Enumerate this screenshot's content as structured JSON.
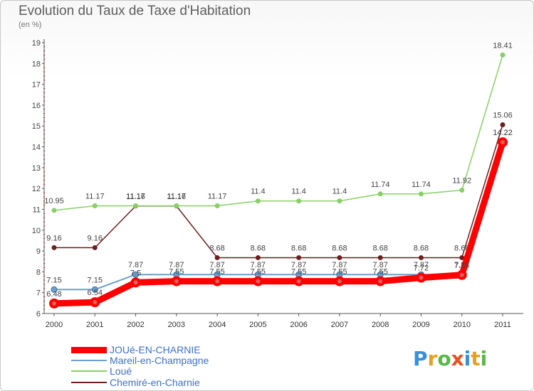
{
  "header": {
    "title": "Evolution du Taux de Taxe d'Habitation",
    "subtitle": "(en %)"
  },
  "logo": {
    "letters": [
      "P",
      "r",
      "o",
      "x",
      "i",
      "t",
      "i"
    ],
    "colors": [
      "#3a8fd8",
      "#e8a020",
      "#58b848",
      "#e85020",
      "#3a8fd8",
      "#e8a020",
      "#58b848"
    ]
  },
  "chart_data": {
    "type": "line",
    "title": "Evolution du Taux de Taxe d'Habitation",
    "ylabel": "(en %)",
    "xlabel": "",
    "ylim": [
      6,
      19
    ],
    "yticks": [
      "6",
      "7",
      "8",
      "9",
      "10",
      "11",
      "12",
      "13",
      "14",
      "15",
      "16",
      "17",
      "18",
      "19"
    ],
    "categories": [
      "2000",
      "2001",
      "2002",
      "2003",
      "2004",
      "2005",
      "2006",
      "2007",
      "2008",
      "2009",
      "2010",
      "2011"
    ],
    "grid": false,
    "legend_position": "bottom-left",
    "series": [
      {
        "name": "JOUé-EN-CHARNIE",
        "color": "#ff0000",
        "values": [
          6.48,
          6.54,
          7.49,
          7.55,
          7.55,
          7.55,
          7.55,
          7.55,
          7.55,
          7.72,
          7.85,
          14.22
        ],
        "labels": [
          "6.48",
          "6.54",
          "7.5",
          "7.55",
          "7.55",
          "7.55",
          "7.55",
          "7.55",
          "7.55",
          "7.72",
          "7.85",
          "14.22"
        ]
      },
      {
        "name": "Mareil-en-Champagne",
        "color": "#6e9fc8",
        "values": [
          7.15,
          7.15,
          7.87,
          7.87,
          7.87,
          7.87,
          7.87,
          7.87,
          7.87,
          7.87,
          7.87,
          14.22
        ],
        "labels": [
          "7.15",
          "7.15",
          "7.87",
          "7.87",
          "7.87",
          "7.87",
          "7.87",
          "7.87",
          "7.87",
          "7.87",
          "7.87",
          "14.22"
        ]
      },
      {
        "name": "Loué",
        "color": "#88d065",
        "values": [
          10.95,
          11.17,
          11.17,
          11.17,
          11.17,
          11.4,
          11.4,
          11.4,
          11.74,
          11.74,
          11.92,
          18.41
        ],
        "labels": [
          "10.95",
          "11.17",
          "11.17",
          "11.17",
          "11.17",
          "11.4",
          "11.4",
          "11.4",
          "11.74",
          "11.74",
          "11.92",
          "18.41"
        ]
      },
      {
        "name": "Chemiré-en-Charnie",
        "color": "#6b1f1f",
        "values": [
          9.16,
          9.16,
          11.16,
          11.16,
          8.68,
          8.68,
          8.68,
          8.68,
          8.68,
          8.68,
          8.68,
          15.06
        ],
        "labels": [
          "9.16",
          "9.16",
          "11.16",
          "11.16",
          "8.68",
          "8.68",
          "8.68",
          "8.68",
          "8.68",
          "8.68",
          "8.68",
          "15.06"
        ]
      }
    ]
  }
}
